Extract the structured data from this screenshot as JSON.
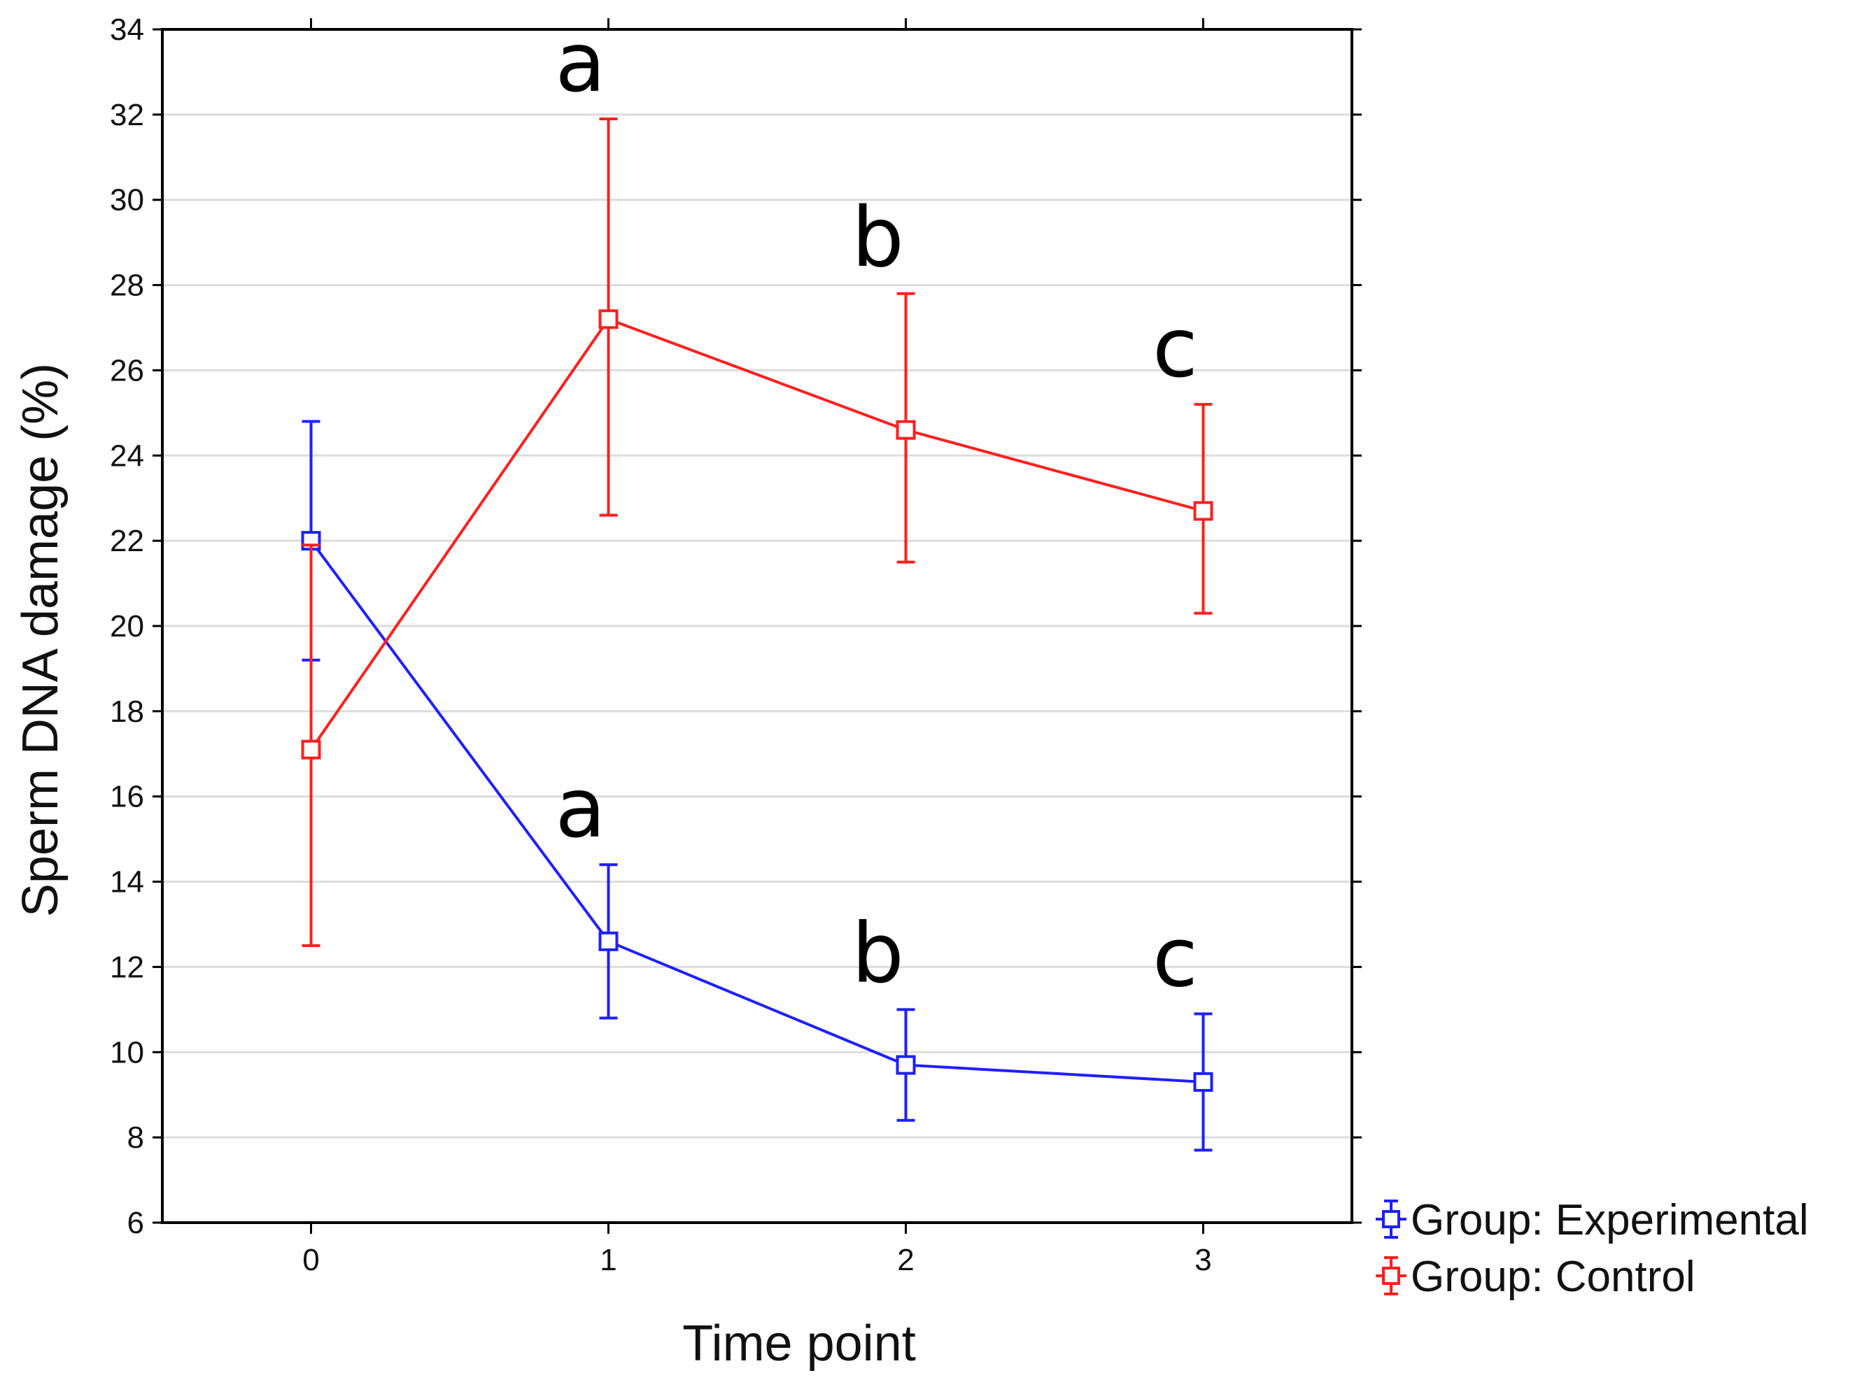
{
  "chart_data": {
    "type": "line",
    "title": "",
    "xlabel": "Time point",
    "ylabel": "Sperm DNA damage (%)",
    "x": [
      0,
      1,
      2,
      3
    ],
    "xticks": [
      "0",
      "1",
      "2",
      "3"
    ],
    "xlim": [
      -0.5,
      3.5
    ],
    "ylim": [
      6,
      34
    ],
    "yticks": [
      6,
      8,
      10,
      12,
      14,
      16,
      18,
      20,
      22,
      24,
      26,
      28,
      30,
      32,
      34
    ],
    "grid": "horizontal",
    "legend_position": "bottom-right outside",
    "series": [
      {
        "name": "Group: Experimental",
        "color": "#1f1fff",
        "values": [
          22.0,
          12.6,
          9.7,
          9.3
        ],
        "error_low": [
          19.2,
          10.8,
          8.4,
          7.7
        ],
        "error_high": [
          24.8,
          14.4,
          11.0,
          10.9
        ],
        "annotations": [
          "",
          "a",
          "b",
          "c"
        ]
      },
      {
        "name": "Group: Control",
        "color": "#ff1f1f",
        "values": [
          17.1,
          27.2,
          24.6,
          22.7
        ],
        "error_low": [
          12.5,
          22.6,
          21.5,
          20.3
        ],
        "error_high": [
          21.9,
          31.9,
          27.8,
          25.2
        ],
        "annotations": [
          "",
          "a",
          "b",
          "c"
        ]
      }
    ]
  }
}
